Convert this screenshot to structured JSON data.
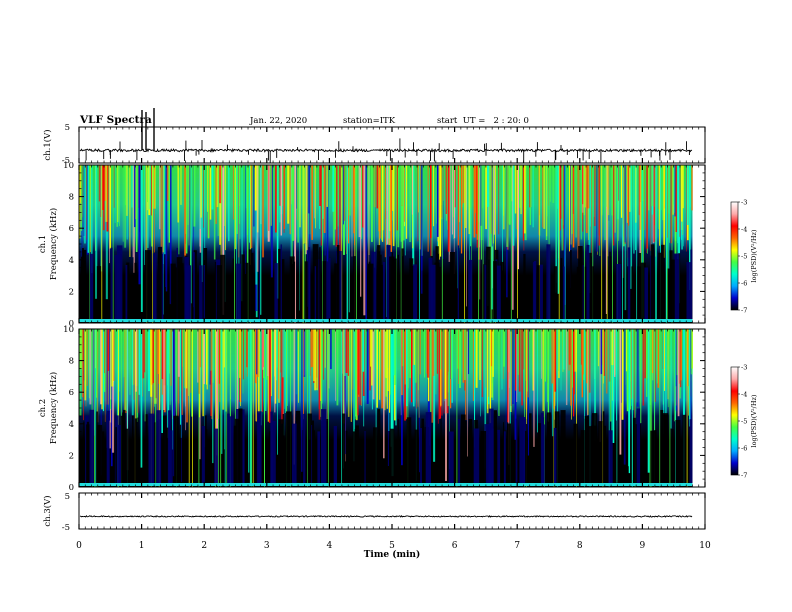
{
  "header": {
    "title": "VLF Spectra",
    "date": "Jan. 22, 2020",
    "station": "station=ITK",
    "start_ut": "start  UT =   2 : 20: 0"
  },
  "chart_data": [
    {
      "type": "line",
      "panel": "ch1-waveform",
      "ylabel": "ch.1(V)",
      "ylim": [
        -5,
        5
      ],
      "yticks": [
        "5",
        "-5"
      ],
      "x_range_min": [
        0,
        9.8
      ],
      "baseline": -1.5
    },
    {
      "type": "heatmap",
      "panel": "ch1-spectrogram",
      "ylabel_line1": "ch.1",
      "ylabel_line2": "Frequency (kHz)",
      "ylim": [
        0,
        10
      ],
      "yticks": [
        "0",
        "2",
        "4",
        "6",
        "8",
        "10"
      ],
      "x_range_min": [
        0,
        9.8
      ],
      "colorbar": {
        "label": "log(PSD)(V²/Hz)",
        "range": [
          -7,
          -3
        ],
        "ticks": [
          "-3",
          "-4",
          "-5",
          "-6",
          "-7"
        ]
      }
    },
    {
      "type": "heatmap",
      "panel": "ch2-spectrogram",
      "ylabel_line1": "ch.2",
      "ylabel_line2": "Frequency (kHz)",
      "ylim": [
        0,
        10
      ],
      "yticks": [
        "0",
        "2",
        "4",
        "6",
        "8",
        "10"
      ],
      "x_range_min": [
        0,
        9.8
      ],
      "colorbar": {
        "label": "log(PSD)(V²/Hz)",
        "range": [
          -7,
          -3
        ],
        "ticks": [
          "-3",
          "-4",
          "-5",
          "-6",
          "-7"
        ]
      }
    },
    {
      "type": "line",
      "panel": "ch3-waveform",
      "ylabel": "ch.3(V)",
      "ylim": [
        -5,
        5
      ],
      "yticks": [
        "5",
        "-5"
      ],
      "x_range_min": [
        0,
        9.8
      ],
      "baseline": -1.5
    }
  ],
  "xaxis": {
    "label": "Time (min)",
    "range": [
      0,
      10
    ],
    "ticks": [
      "0",
      "1",
      "2",
      "3",
      "4",
      "5",
      "6",
      "7",
      "8",
      "9",
      "10"
    ]
  },
  "colors": {
    "spectrum": [
      "#000000",
      "#000033",
      "#0000cc",
      "#00aaff",
      "#00ffcc",
      "#44ff44",
      "#ffff00",
      "#ff6600",
      "#ff0000",
      "#ffaaaa",
      "#ffffff"
    ]
  }
}
